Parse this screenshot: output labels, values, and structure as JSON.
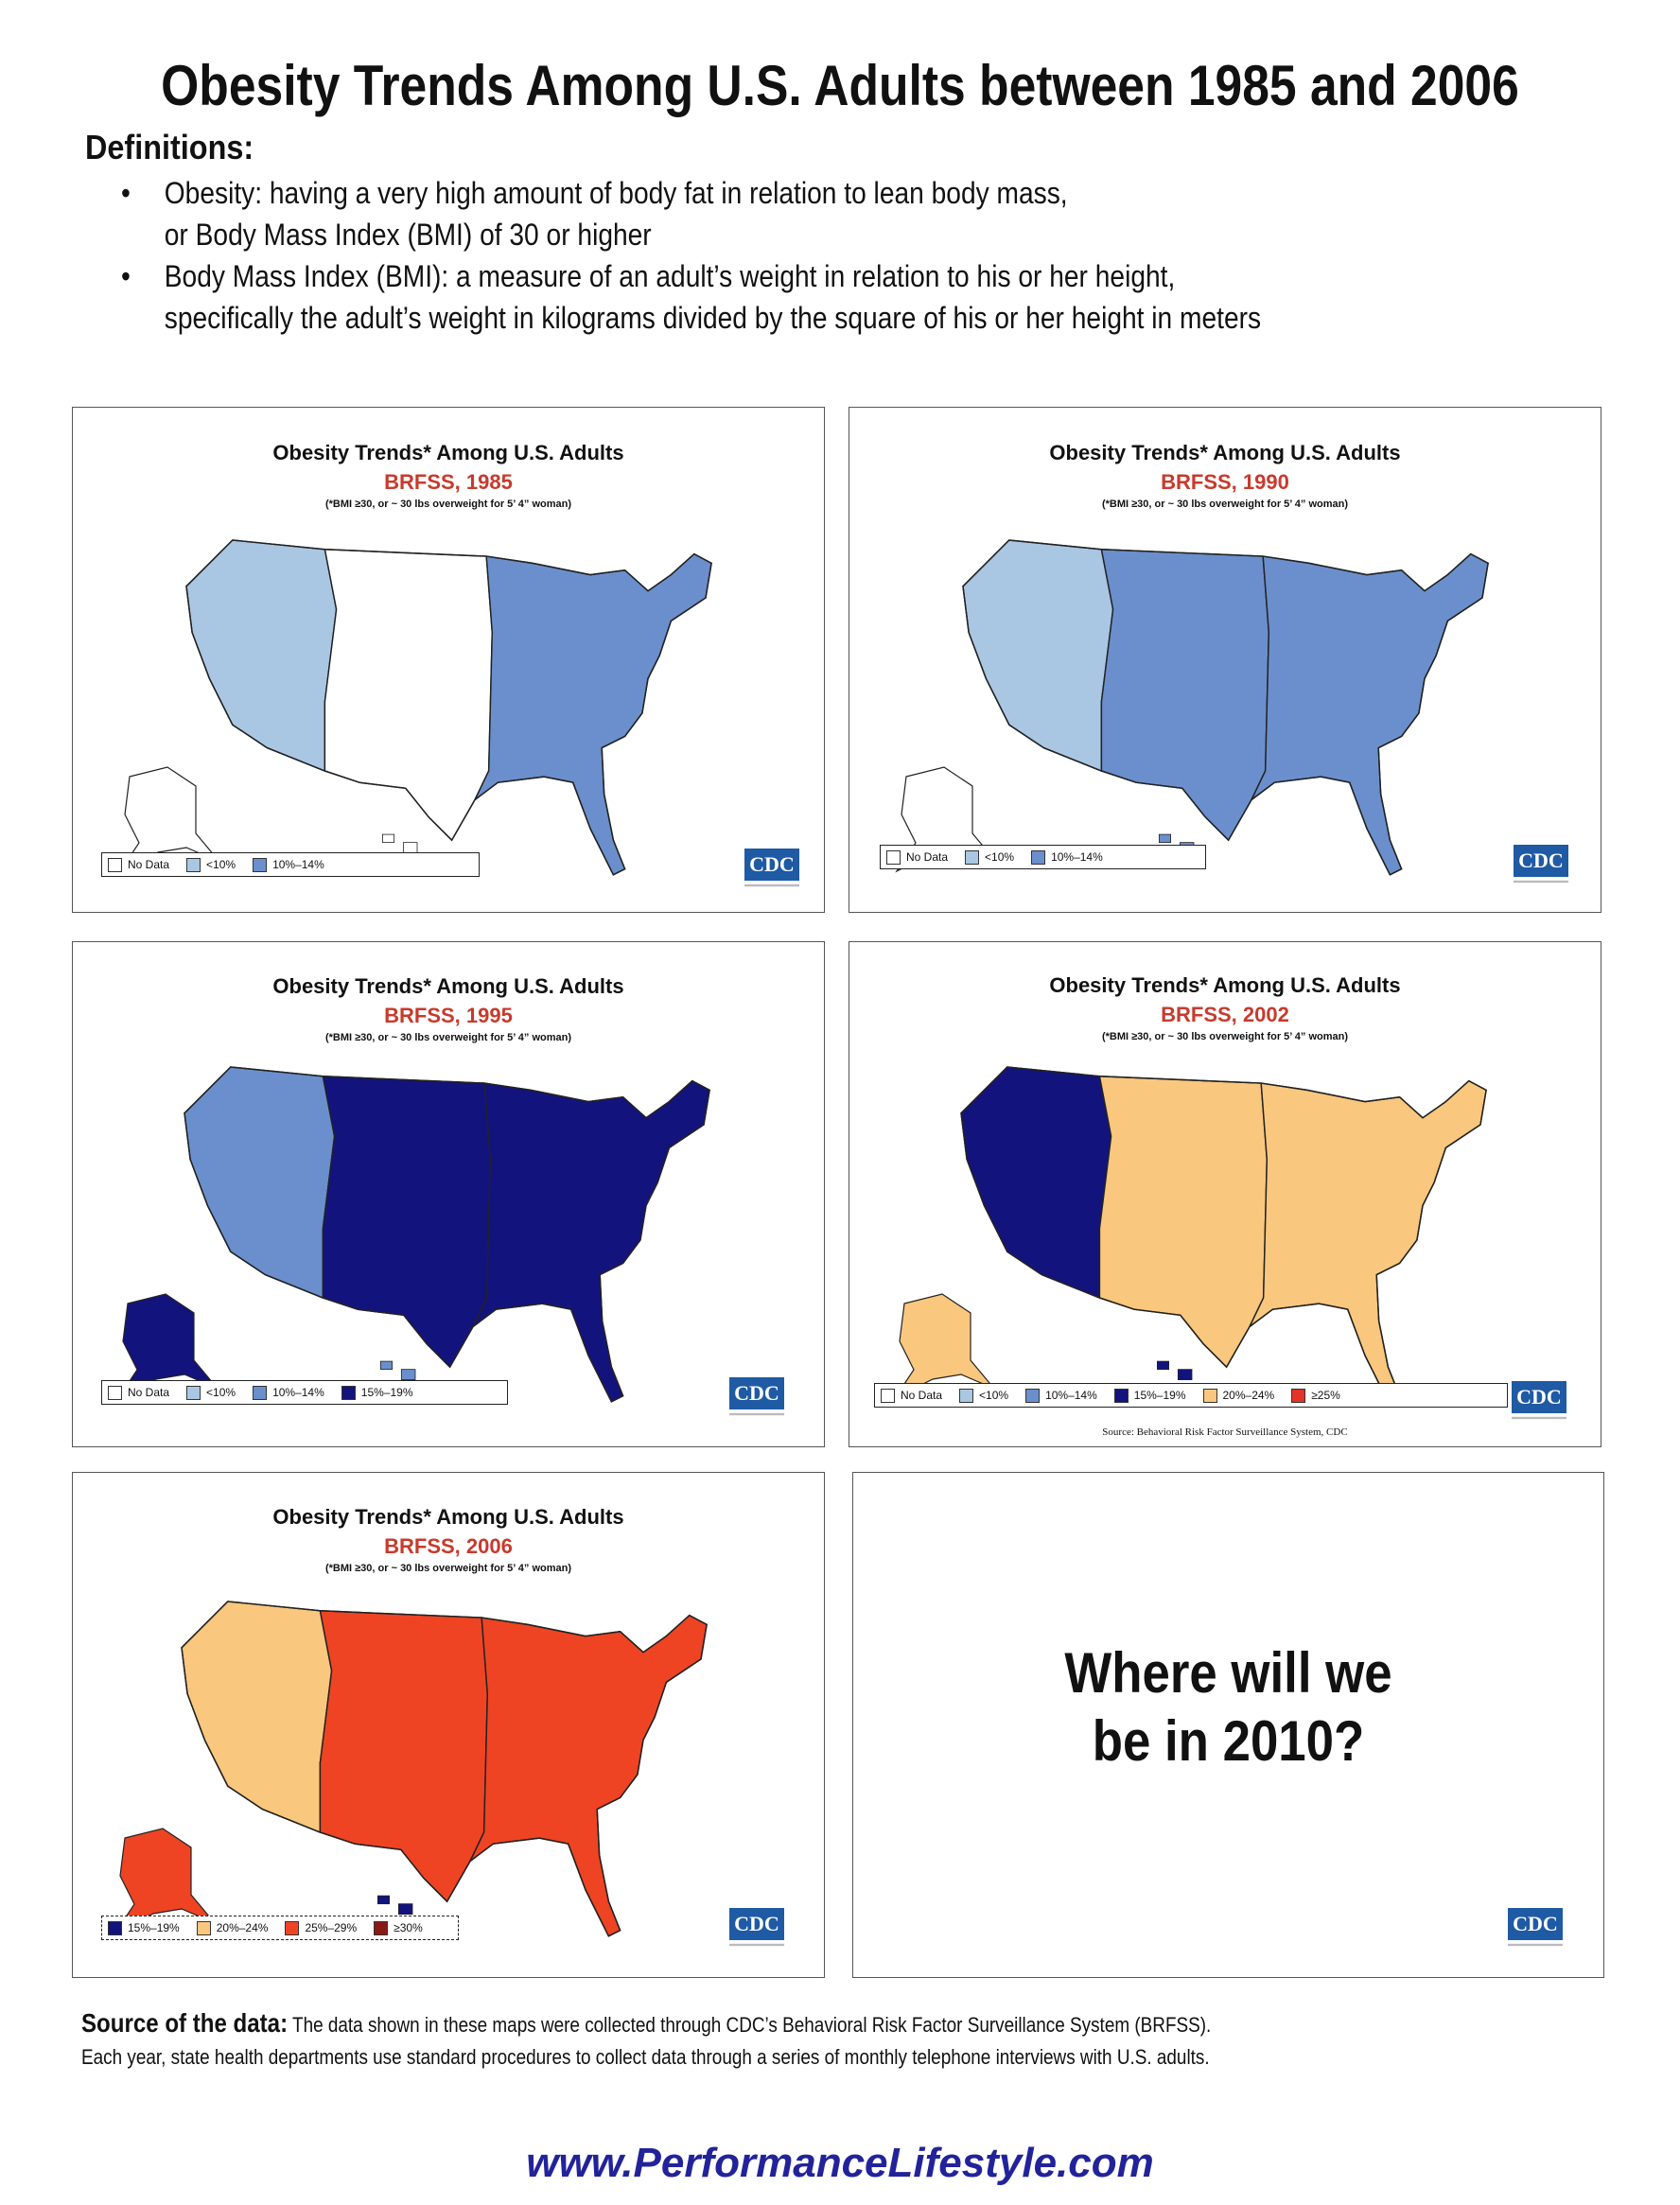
{
  "title": "Obesity Trends Among U.S. Adults between 1985 and 2006",
  "definitions": {
    "heading": "Definitions:",
    "bullet": "•",
    "items": [
      [
        "Obesity: having a very high amount of body fat in relation to lean body mass,",
        "or Body Mass Index (BMI) of 30 or higher"
      ],
      [
        "Body Mass Index (BMI): a measure of an adult’s weight in relation to his or her height,",
        "specifically the adult’s weight in kilograms divided by the square of his or her height in meters"
      ]
    ]
  },
  "colors": {
    "no_data": "#ffffff",
    "lt10": "#a9c7e3",
    "p10_14": "#6a8fcc",
    "p15_19": "#13137e",
    "p20_24": "#f9c77d",
    "p25_29": "#ee4423",
    "ge30": "#8a1a15",
    "ge25": "#e23428",
    "cdc_blue": "#1f5aa5",
    "title_red": "#c83a2c",
    "link_blue": "#22239a"
  },
  "panels": [
    {
      "title": "Obesity Trends* Among U.S. Adults",
      "subtitle": "BRFSS, 1985",
      "note": "(*BMI ≥30, or ~ 30 lbs overweight for 5’ 4” woman)",
      "fill_scheme": [
        "no_data",
        "lt10",
        "p10_14"
      ],
      "legend": [
        {
          "label": "No Data",
          "color": "no_data"
        },
        {
          "label": "<10%",
          "color": "lt10"
        },
        {
          "label": "10%–14%",
          "color": "p10_14"
        }
      ],
      "logo": "CDC"
    },
    {
      "title": "Obesity Trends* Among U.S. Adults",
      "subtitle": "BRFSS, 1990",
      "note": "(*BMI ≥30, or ~ 30 lbs overweight for 5’ 4” woman)",
      "fill_scheme": [
        "no_data",
        "lt10",
        "p10_14"
      ],
      "legend": [
        {
          "label": "No Data",
          "color": "no_data"
        },
        {
          "label": "<10%",
          "color": "lt10"
        },
        {
          "label": "10%–14%",
          "color": "p10_14"
        }
      ],
      "logo": "CDC"
    },
    {
      "title": "Obesity Trends* Among U.S. Adults",
      "subtitle": "BRFSS, 1995",
      "note": "(*BMI ≥30, or ~ 30 lbs overweight for 5’ 4” woman)",
      "fill_scheme": [
        "p10_14",
        "p15_19",
        "lt10"
      ],
      "legend": [
        {
          "label": "No Data",
          "color": "no_data"
        },
        {
          "label": "<10%",
          "color": "lt10"
        },
        {
          "label": "10%–14%",
          "color": "p10_14"
        },
        {
          "label": "15%–19%",
          "color": "p15_19"
        }
      ],
      "logo": "CDC"
    },
    {
      "title": "Obesity Trends* Among U.S. Adults",
      "subtitle": "BRFSS, 2002",
      "note": "(*BMI ≥30, or ~ 30 lbs overweight for 5’ 4” woman)",
      "fill_scheme": [
        "p20_24",
        "p15_19",
        "ge25"
      ],
      "legend": [
        {
          "label": "No Data",
          "color": "no_data"
        },
        {
          "label": "<10%",
          "color": "lt10"
        },
        {
          "label": "10%–14%",
          "color": "p10_14"
        },
        {
          "label": "15%–19%",
          "color": "p15_19"
        },
        {
          "label": "20%–24%",
          "color": "p20_24"
        },
        {
          "label": "≥25%",
          "color": "ge25"
        }
      ],
      "source": "Source: Behavioral Risk Factor Surveillance System, CDC",
      "logo": "CDC"
    },
    {
      "title": "Obesity Trends* Among U.S. Adults",
      "subtitle": "BRFSS, 2006",
      "note": "(*BMI ≥30, or ~ 30 lbs overweight for 5’ 4” woman)",
      "fill_scheme": [
        "p20_24",
        "p25_29",
        "p15_19"
      ],
      "legend": [
        {
          "label": "15%–19%",
          "color": "p15_19"
        },
        {
          "label": "20%–24%",
          "color": "p20_24"
        },
        {
          "label": "25%–29%",
          "color": "p25_29"
        },
        {
          "label": "≥30%",
          "color": "ge30"
        }
      ],
      "logo": "CDC"
    }
  ],
  "question_panel": {
    "line1": "Where will we",
    "line2": "be in 2010?",
    "logo": "CDC"
  },
  "source": {
    "label": "Source of the data:",
    "text1": "The data shown in these maps were collected through CDC’s Behavioral Risk Factor Surveillance System (BRFSS).",
    "text2": "Each year, state health departments use standard procedures to collect data through a series of monthly telephone interviews with U.S. adults."
  },
  "website": "www.PerformanceLifestyle.com"
}
